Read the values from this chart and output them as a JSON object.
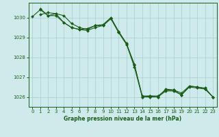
{
  "title": "Graphe pression niveau de la mer (hPa)",
  "bg_color": "#ceeaea",
  "grid_color": "#aacccc",
  "line_color": "#1a5c1a",
  "marker_color": "#1a5c1a",
  "xlim": [
    -0.5,
    23.5
  ],
  "ylim": [
    1025.5,
    1030.75
  ],
  "yticks": [
    1026,
    1027,
    1028,
    1029,
    1030
  ],
  "xticks": [
    0,
    1,
    2,
    3,
    4,
    5,
    6,
    7,
    8,
    9,
    10,
    11,
    12,
    13,
    14,
    15,
    16,
    17,
    18,
    19,
    20,
    21,
    22,
    23
  ],
  "series1": {
    "x": [
      1,
      2,
      3,
      4,
      5,
      6,
      7,
      8,
      9,
      10,
      11,
      12,
      13,
      14,
      15,
      16,
      17,
      18,
      19,
      20,
      21,
      22,
      23
    ],
    "y": [
      1030.45,
      1030.1,
      1030.2,
      1030.1,
      1029.7,
      1029.5,
      1029.4,
      1029.6,
      1029.65,
      1030.0,
      1029.3,
      1028.7,
      1027.6,
      1026.05,
      1026.05,
      1026.05,
      1026.35,
      1026.35,
      1026.2,
      1026.55,
      1026.5,
      1026.45,
      1026.0
    ]
  },
  "series2": {
    "x": [
      1,
      2,
      3,
      4,
      5,
      6,
      7,
      8,
      9,
      10,
      11,
      12,
      13,
      14,
      15,
      16,
      17,
      18,
      19,
      20,
      21,
      22,
      23
    ],
    "y": [
      1030.15,
      1030.25,
      1030.2,
      1029.75,
      1029.5,
      1029.4,
      1029.45,
      1029.6,
      1029.6,
      1029.95,
      1029.25,
      1028.65,
      1027.65,
      1026.0,
      1026.0,
      1026.0,
      1026.4,
      1026.35,
      1026.1,
      1026.5,
      1026.45,
      1026.4,
      1026.0
    ]
  },
  "series3": {
    "x": [
      0,
      1,
      2,
      3,
      4,
      5,
      6,
      7,
      8,
      9,
      10,
      11,
      12,
      13,
      14,
      15,
      16,
      17,
      18,
      19,
      20,
      21,
      22,
      23
    ],
    "y": [
      1030.05,
      1030.4,
      1030.1,
      1030.1,
      1029.75,
      1029.5,
      1029.4,
      1029.35,
      1029.5,
      1029.6,
      1029.95,
      1029.25,
      1028.65,
      1027.5,
      1026.0,
      1026.05,
      1026.0,
      1026.3,
      1026.3,
      1026.1,
      1026.55,
      1026.5,
      1026.4,
      1026.0
    ]
  }
}
